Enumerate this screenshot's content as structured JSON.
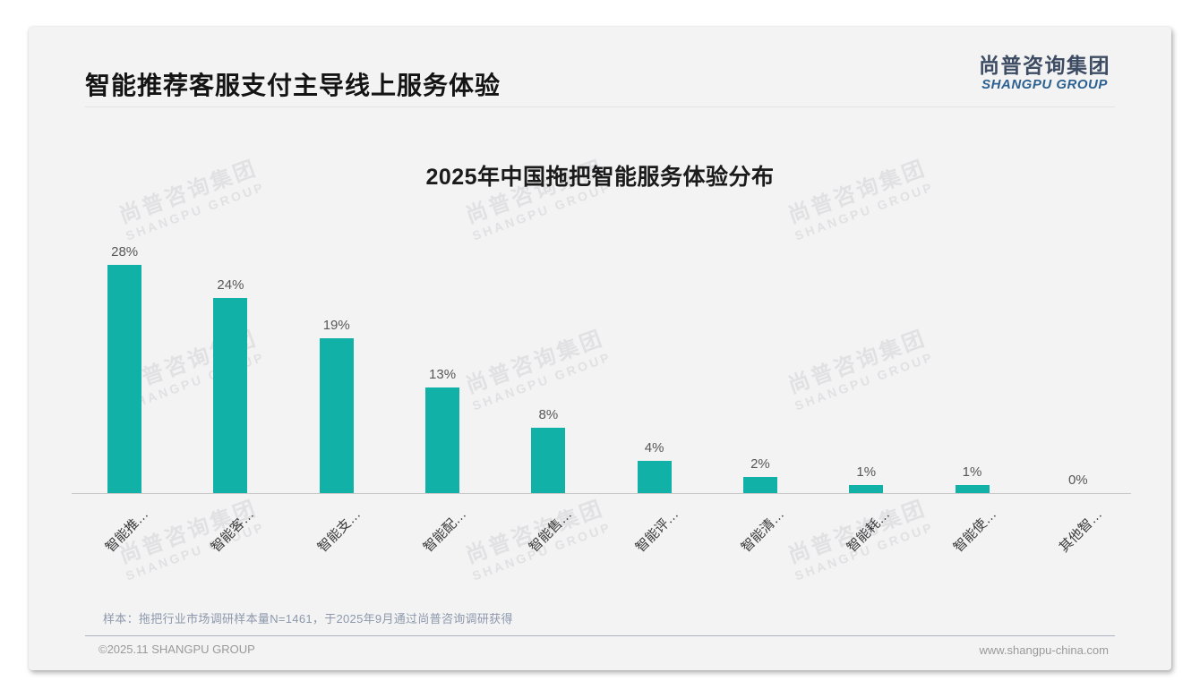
{
  "slide": {
    "title": "智能推荐客服支付主导线上服务体验",
    "logo": {
      "cn": "尚普咨询集团",
      "en": "SHANGPU GROUP"
    },
    "watermark": {
      "cn": "尚普咨询集团",
      "en": "SHANGPU GROUP"
    },
    "note": "样本：拖把行业市场调研样本量N=1461，于2025年9月通过尚普咨询调研获得",
    "footer": {
      "copyright": "©2025.11 SHANGPU GROUP",
      "website": "www.shangpu-china.com"
    }
  },
  "chart_data": {
    "type": "bar",
    "title": "2025年中国拖把智能服务体验分布",
    "categories": [
      "智能推…",
      "智能客…",
      "智能支…",
      "智能配…",
      "智能售…",
      "智能评…",
      "智能清…",
      "智能耗…",
      "智能使…",
      "其他智…"
    ],
    "values": [
      28,
      24,
      19,
      13,
      8,
      4,
      2,
      1,
      1,
      0
    ],
    "value_labels": [
      "28%",
      "24%",
      "19%",
      "13%",
      "8%",
      "4%",
      "2%",
      "1%",
      "1%",
      "0%"
    ],
    "unit": "%",
    "bar_color": "#12b1a7",
    "ylim": [
      0,
      30
    ],
    "xlabel": "",
    "ylabel": "",
    "grid": false,
    "legend": "none",
    "y_axis_visible": false,
    "x_label_rotation_deg": 45
  }
}
